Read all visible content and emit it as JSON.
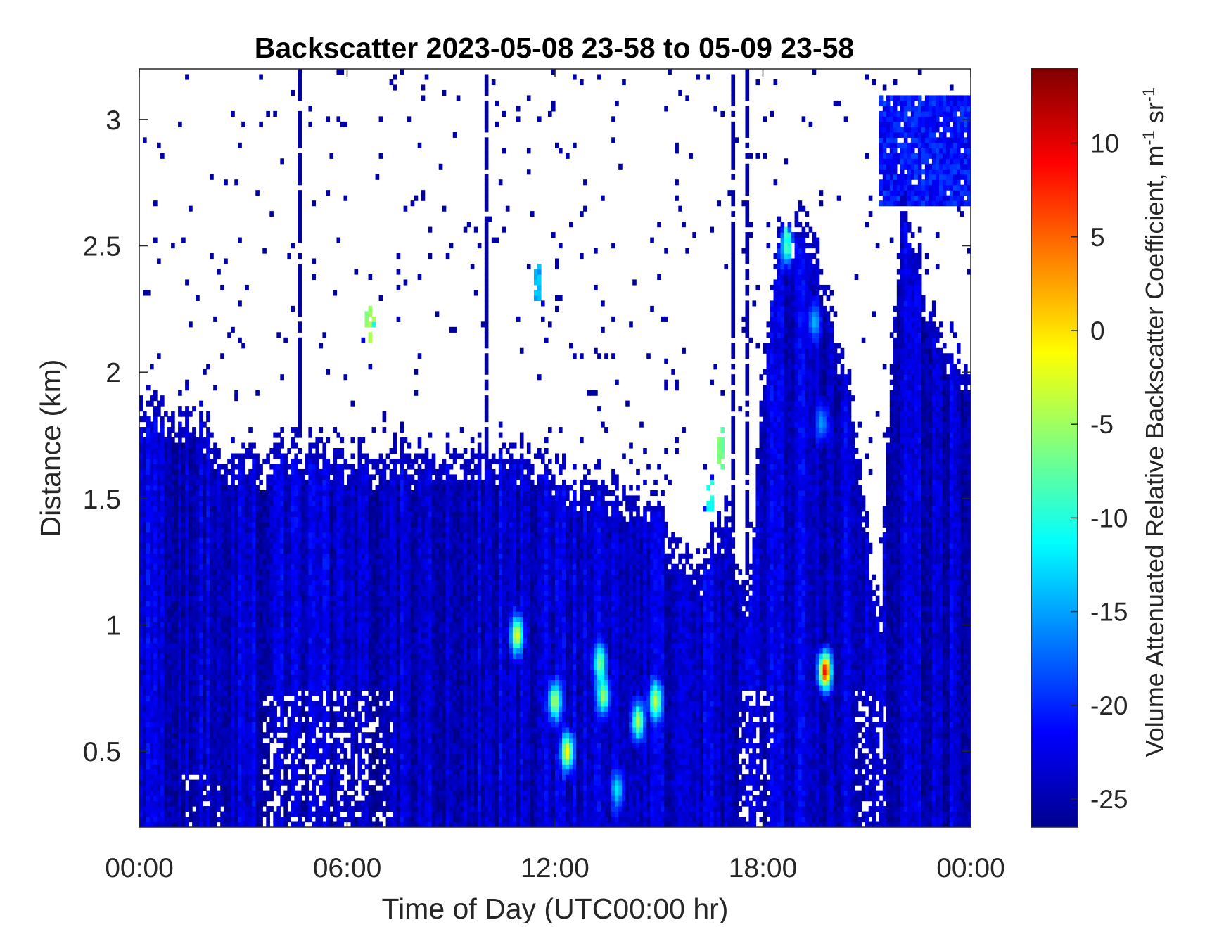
{
  "chart_data": {
    "type": "heatmap",
    "title": "Backscatter 2023-05-08 23-58 to 05-09 23-58",
    "xlabel": "Time of Day (UTC00:00 hr)",
    "ylabel": "Distance (km)",
    "xlim": [
      0,
      24
    ],
    "ylim": [
      0.2,
      3.2
    ],
    "xticks": [
      {
        "value": 0,
        "label": "00:00"
      },
      {
        "value": 6,
        "label": "06:00"
      },
      {
        "value": 12,
        "label": "12:00"
      },
      {
        "value": 18,
        "label": "18:00"
      },
      {
        "value": 24,
        "label": "00:00"
      }
    ],
    "yticks": [
      {
        "value": 0.5,
        "label": "0.5"
      },
      {
        "value": 1,
        "label": "1"
      },
      {
        "value": 1.5,
        "label": "1.5"
      },
      {
        "value": 2,
        "label": "2"
      },
      {
        "value": 2.5,
        "label": "2.5"
      },
      {
        "value": 3,
        "label": "3"
      }
    ],
    "colorbar": {
      "label": "Volume Attenuated Relative Backscatter Coefficient, m",
      "label_sup1": "-1",
      "label_mid": " sr",
      "label_sup2": "-1",
      "colormap": "jet",
      "clim": [
        -26.5,
        14
      ],
      "ticks": [
        {
          "value": 10,
          "label": "10"
        },
        {
          "value": 5,
          "label": "5"
        },
        {
          "value": 0,
          "label": "0"
        },
        {
          "value": -5,
          "label": "-5"
        },
        {
          "value": -10,
          "label": "-10"
        },
        {
          "value": -15,
          "label": "-15"
        },
        {
          "value": -20,
          "label": "-20"
        },
        {
          "value": -25,
          "label": "-25"
        }
      ]
    },
    "boundary_layer_top_km": [
      [
        0,
        1.75
      ],
      [
        1.5,
        1.8
      ],
      [
        2.5,
        1.6
      ],
      [
        6,
        1.6
      ],
      [
        10,
        1.62
      ],
      [
        11.5,
        1.6
      ],
      [
        12,
        1.5
      ],
      [
        14,
        1.45
      ],
      [
        15,
        1.4
      ],
      [
        15.6,
        1.2
      ],
      [
        16.3,
        1.15
      ],
      [
        17,
        1.4
      ],
      [
        17.6,
        0.95
      ],
      [
        18,
        1.9
      ],
      [
        18.5,
        2.5
      ],
      [
        19.5,
        2.45
      ],
      [
        20.6,
        1.8
      ],
      [
        21,
        1.3
      ],
      [
        21.4,
        0.9
      ],
      [
        21.6,
        1.7
      ],
      [
        22,
        2.6
      ],
      [
        23,
        2.1
      ],
      [
        24,
        1.95
      ]
    ],
    "upper_layer": {
      "x_range": [
        21.4,
        24
      ],
      "y_range": [
        2.65,
        3.1
      ]
    },
    "hotspots": [
      {
        "x": 6.65,
        "y": 2.2,
        "value": -3
      },
      {
        "x": 10.9,
        "y": 0.96,
        "value": -2
      },
      {
        "x": 12.35,
        "y": 0.5,
        "value": -1
      },
      {
        "x": 12.0,
        "y": 0.7,
        "value": -4
      },
      {
        "x": 13.4,
        "y": 0.72,
        "value": -5
      },
      {
        "x": 13.3,
        "y": 0.85,
        "value": -6
      },
      {
        "x": 13.8,
        "y": 0.35,
        "value": -12
      },
      {
        "x": 14.4,
        "y": 0.62,
        "value": -4
      },
      {
        "x": 14.9,
        "y": 0.7,
        "value": -3
      },
      {
        "x": 11.5,
        "y": 2.35,
        "value": -12
      },
      {
        "x": 16.5,
        "y": 1.5,
        "value": -8
      },
      {
        "x": 16.8,
        "y": 1.7,
        "value": -4
      },
      {
        "x": 18.7,
        "y": 2.5,
        "value": -8
      },
      {
        "x": 19.5,
        "y": 2.2,
        "value": -14
      },
      {
        "x": 19.7,
        "y": 1.8,
        "value": -15
      },
      {
        "x": 19.8,
        "y": 0.82,
        "value": 9
      }
    ]
  }
}
